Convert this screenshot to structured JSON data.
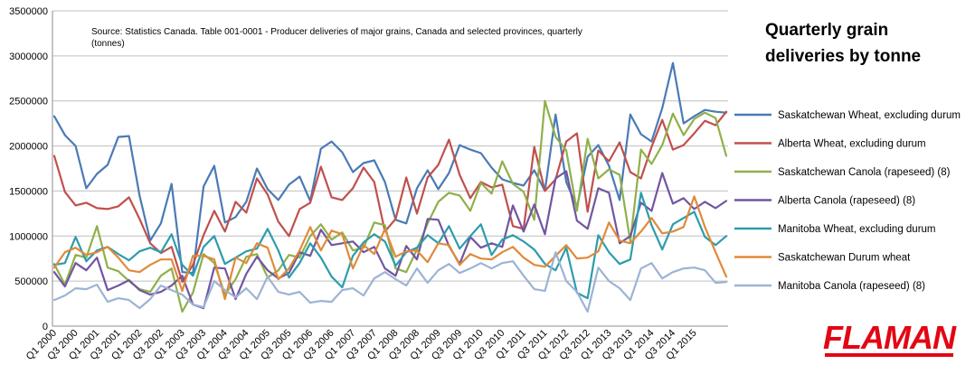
{
  "chart_data": {
    "type": "line",
    "title": [
      "Quarterly grain",
      "deliveries by tonne"
    ],
    "source_note": [
      "Source: Statistics Canada. Table 001-0001 - Producer deliveries of major grains, Canada and selected provinces, quarterly",
      "(tonnes)"
    ],
    "ylim": [
      0,
      3500000
    ],
    "yticks": [
      "0",
      "500000",
      "1000000",
      "1500000",
      "2000000",
      "2500000",
      "3000000",
      "3500000"
    ],
    "x_labels": [
      "Q1 2000",
      "Q3 2000",
      "Q1 2001",
      "Q3 2001",
      "Q1 2002",
      "Q3 2002",
      "Q1 2003",
      "Q3 2003",
      "Q1 2004",
      "Q3 2004",
      "Q1 2005",
      "Q3 2005",
      "Q1 2006",
      "Q3 2006",
      "Q1 2007",
      "Q3 2007",
      "Q1 2008",
      "Q3 2008",
      "Q1 2009",
      "Q3 2009",
      "Q1 2010",
      "Q3 2010",
      "Q1 2011",
      "Q3 2011",
      "Q1 2012",
      "Q3 2012",
      "Q1 2013",
      "Q3 2013",
      "Q1 2014",
      "Q3 2014",
      "Q1 2015"
    ],
    "num_points": 64,
    "grid": "horizontal",
    "legend_position": "right",
    "series": [
      {
        "name": "Saskatchewan Wheat, excluding durum",
        "color": "#4a7ab5",
        "values": [
          2330000,
          2120000,
          2000000,
          1530000,
          1690000,
          1790000,
          2100000,
          2110000,
          1450000,
          950000,
          1140000,
          1580000,
          600000,
          590000,
          1550000,
          1780000,
          1150000,
          1210000,
          1380000,
          1750000,
          1520000,
          1400000,
          1570000,
          1660000,
          1390000,
          1970000,
          2050000,
          1930000,
          1710000,
          1810000,
          1840000,
          1600000,
          1180000,
          1140000,
          1530000,
          1730000,
          1520000,
          1700000,
          2010000,
          1960000,
          1920000,
          1760000,
          1630000,
          1590000,
          1560000,
          1730000,
          1500000,
          2350000,
          1600000,
          1320000,
          1880000,
          2010000,
          1780000,
          1400000,
          2350000,
          2130000,
          2050000,
          2420000,
          2920000,
          2250000,
          2330000,
          2400000,
          2380000,
          2370000
        ]
      },
      {
        "name": "Alberta Wheat, excluding durum",
        "color": "#c0504d",
        "values": [
          1890000,
          1490000,
          1340000,
          1370000,
          1310000,
          1300000,
          1330000,
          1430000,
          1190000,
          920000,
          810000,
          880000,
          490000,
          680000,
          1010000,
          1280000,
          1050000,
          1380000,
          1260000,
          1640000,
          1460000,
          1160000,
          1000000,
          1300000,
          1370000,
          1770000,
          1430000,
          1400000,
          1530000,
          1760000,
          1600000,
          1050000,
          1190000,
          1650000,
          1250000,
          1650000,
          1790000,
          2070000,
          1680000,
          1420000,
          1600000,
          1540000,
          1570000,
          1110000,
          1080000,
          1990000,
          1500000,
          1630000,
          2050000,
          2140000,
          1270000,
          1950000,
          1830000,
          2040000,
          1710000,
          1640000,
          1990000,
          2290000,
          1960000,
          2010000,
          2140000,
          2280000,
          2230000,
          2380000
        ]
      },
      {
        "name": "Saskatchewan Canola (rapeseed) (8)",
        "color": "#8fb04a",
        "values": [
          690000,
          460000,
          790000,
          760000,
          1110000,
          650000,
          610000,
          500000,
          410000,
          380000,
          560000,
          640000,
          160000,
          370000,
          800000,
          700000,
          350000,
          520000,
          770000,
          800000,
          540000,
          620000,
          790000,
          760000,
          1000000,
          1130000,
          960000,
          1040000,
          840000,
          870000,
          1150000,
          1120000,
          640000,
          600000,
          850000,
          1140000,
          1380000,
          1480000,
          1450000,
          1280000,
          1590000,
          1470000,
          1830000,
          1580000,
          1490000,
          1180000,
          2500000,
          2100000,
          1950000,
          1280000,
          2080000,
          1640000,
          1740000,
          1680000,
          940000,
          1960000,
          1800000,
          2010000,
          2360000,
          2120000,
          2300000,
          2370000,
          2310000,
          1890000
        ]
      },
      {
        "name": "Alberta Canola (rapeseed) (8)",
        "color": "#7255a0",
        "values": [
          600000,
          440000,
          700000,
          620000,
          760000,
          400000,
          450000,
          510000,
          400000,
          350000,
          380000,
          450000,
          560000,
          240000,
          200000,
          650000,
          640000,
          300000,
          580000,
          770000,
          620000,
          530000,
          590000,
          820000,
          780000,
          1070000,
          900000,
          920000,
          940000,
          820000,
          880000,
          640000,
          560000,
          890000,
          740000,
          1190000,
          1180000,
          890000,
          690000,
          990000,
          870000,
          920000,
          880000,
          1340000,
          1050000,
          1350000,
          1020000,
          1640000,
          1720000,
          1170000,
          1080000,
          1530000,
          1480000,
          920000,
          1000000,
          1370000,
          1280000,
          1700000,
          1360000,
          1420000,
          1300000,
          1380000,
          1310000,
          1390000
        ]
      },
      {
        "name": "Manitoba Wheat, excluding durum",
        "color": "#2d9cad",
        "values": [
          680000,
          700000,
          990000,
          720000,
          840000,
          880000,
          800000,
          730000,
          830000,
          870000,
          820000,
          1020000,
          680000,
          560000,
          880000,
          1000000,
          690000,
          760000,
          830000,
          860000,
          1080000,
          840000,
          540000,
          700000,
          920000,
          760000,
          550000,
          430000,
          780000,
          930000,
          1020000,
          940000,
          670000,
          820000,
          870000,
          1010000,
          920000,
          1110000,
          860000,
          1000000,
          1130000,
          790000,
          960000,
          1010000,
          940000,
          850000,
          690000,
          620000,
          870000,
          370000,
          310000,
          1010000,
          820000,
          690000,
          740000,
          1480000,
          1120000,
          850000,
          1130000,
          1200000,
          1270000,
          990000,
          900000,
          1000000
        ]
      },
      {
        "name": "Saskatchewan Durum wheat",
        "color": "#e08a3a",
        "values": [
          650000,
          820000,
          870000,
          790000,
          820000,
          880000,
          760000,
          620000,
          600000,
          680000,
          740000,
          740000,
          390000,
          780000,
          780000,
          740000,
          300000,
          760000,
          700000,
          920000,
          870000,
          520000,
          640000,
          840000,
          1100000,
          840000,
          1060000,
          1020000,
          640000,
          900000,
          800000,
          1080000,
          770000,
          830000,
          840000,
          710000,
          920000,
          900000,
          680000,
          800000,
          750000,
          740000,
          820000,
          880000,
          760000,
          680000,
          660000,
          780000,
          900000,
          750000,
          760000,
          830000,
          1150000,
          950000,
          920000,
          1050000,
          1200000,
          1030000,
          1050000,
          1100000,
          1440000,
          1100000,
          820000,
          550000
        ]
      },
      {
        "name": "Manitoba Canola (rapeseed) (8)",
        "color": "#9cb3d4",
        "values": [
          290000,
          340000,
          420000,
          410000,
          460000,
          270000,
          310000,
          290000,
          200000,
          300000,
          450000,
          400000,
          350000,
          240000,
          210000,
          500000,
          400000,
          320000,
          420000,
          300000,
          550000,
          380000,
          350000,
          380000,
          260000,
          280000,
          270000,
          400000,
          420000,
          340000,
          530000,
          600000,
          520000,
          450000,
          640000,
          480000,
          620000,
          690000,
          590000,
          640000,
          700000,
          640000,
          700000,
          720000,
          560000,
          410000,
          390000,
          820000,
          500000,
          380000,
          160000,
          650000,
          500000,
          420000,
          290000,
          640000,
          700000,
          530000,
          600000,
          640000,
          650000,
          620000,
          480000,
          490000
        ]
      }
    ]
  },
  "logo_text": "FLAMAN"
}
